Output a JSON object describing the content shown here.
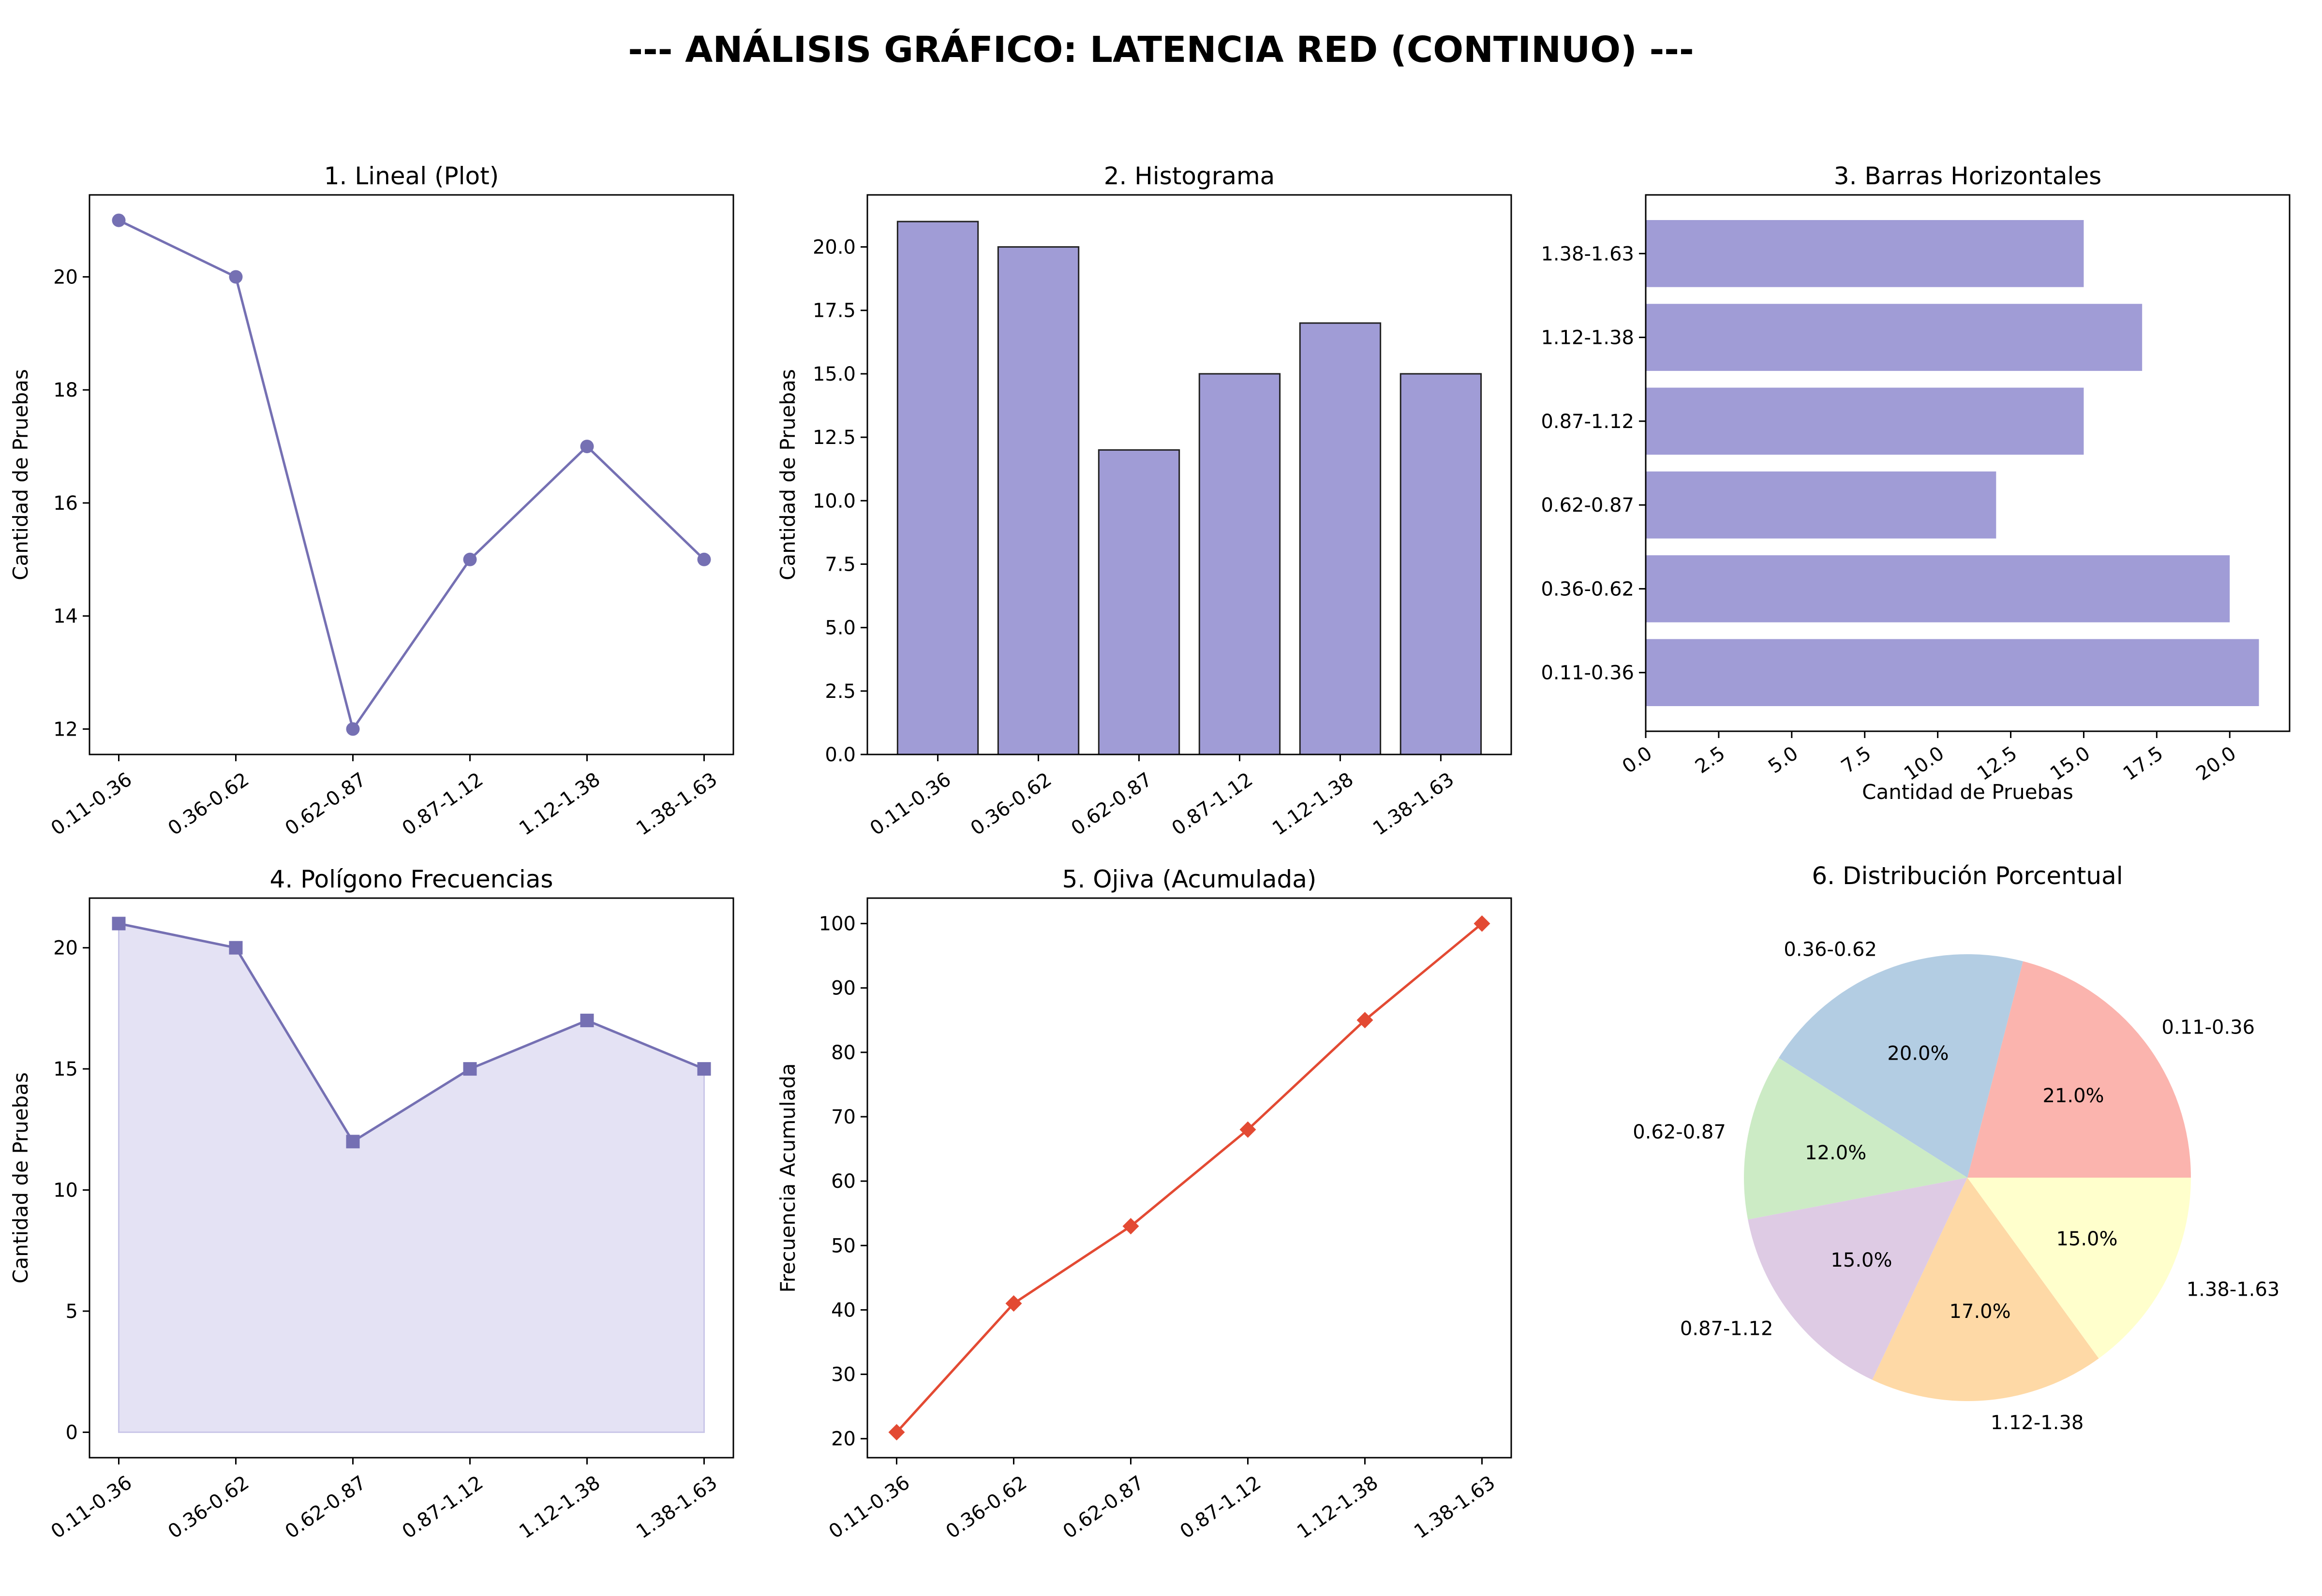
{
  "suptitle": "--- ANÁLISIS GRÁFICO: LATENCIA RED (CONTINUO) ---",
  "colors": {
    "purple_line": "#7570b3",
    "purple_fill": "#a09cd6",
    "purple_area": "#e4e2f4",
    "red": "#e34a33",
    "pie": [
      "#fbb4ae",
      "#b3cde3",
      "#ccebc5",
      "#decbe4",
      "#fed9a6",
      "#ffffcc"
    ]
  },
  "chart_data": [
    {
      "type": "line",
      "title": "1. Lineal (Plot)",
      "xlabel": "",
      "ylabel": "Cantidad de Pruebas",
      "categories": [
        "0.11-0.36",
        "0.36-0.62",
        "0.62-0.87",
        "0.87-1.12",
        "1.12-1.38",
        "1.38-1.63"
      ],
      "values": [
        21,
        20,
        12,
        15,
        17,
        15
      ],
      "ylim": [
        11.55,
        21.45
      ],
      "yticks": [
        "12",
        "14",
        "16",
        "18",
        "20"
      ],
      "ytick_values": [
        12,
        14,
        16,
        18,
        20
      ],
      "marker": "circle"
    },
    {
      "type": "bar",
      "title": "2. Histograma",
      "xlabel": "",
      "ylabel": "Cantidad de Pruebas",
      "categories": [
        "0.11-0.36",
        "0.36-0.62",
        "0.62-0.87",
        "0.87-1.12",
        "1.12-1.38",
        "1.38-1.63"
      ],
      "values": [
        21,
        20,
        12,
        15,
        17,
        15
      ],
      "ylim": [
        0,
        22.05
      ],
      "yticks": [
        "0.0",
        "2.5",
        "5.0",
        "7.5",
        "10.0",
        "12.5",
        "15.0",
        "17.5",
        "20.0"
      ],
      "ytick_values": [
        0,
        2.5,
        5,
        7.5,
        10,
        12.5,
        15,
        17.5,
        20
      ]
    },
    {
      "type": "barh",
      "title": "3. Barras Horizontales",
      "xlabel": "Cantidad de Pruebas",
      "ylabel": "",
      "categories": [
        "0.11-0.36",
        "0.36-0.62",
        "0.62-0.87",
        "0.87-1.12",
        "1.12-1.38",
        "1.38-1.63"
      ],
      "values": [
        21,
        20,
        12,
        15,
        17,
        15
      ],
      "xlim": [
        0,
        22.05
      ],
      "xticks": [
        "0.0",
        "2.5",
        "5.0",
        "7.5",
        "10.0",
        "12.5",
        "15.0",
        "17.5",
        "20.0"
      ],
      "xtick_values": [
        0,
        2.5,
        5,
        7.5,
        10,
        12.5,
        15,
        17.5,
        20
      ]
    },
    {
      "type": "area",
      "title": "4. Polígono Frecuencias",
      "xlabel": "",
      "ylabel": "Cantidad de Pruebas",
      "categories": [
        "0.11-0.36",
        "0.36-0.62",
        "0.62-0.87",
        "0.87-1.12",
        "1.12-1.38",
        "1.38-1.63"
      ],
      "values": [
        21,
        20,
        12,
        15,
        17,
        15
      ],
      "ylim": [
        -1.05,
        22.05
      ],
      "yticks": [
        "0",
        "5",
        "10",
        "15",
        "20"
      ],
      "ytick_values": [
        0,
        5,
        10,
        15,
        20
      ],
      "marker": "square"
    },
    {
      "type": "line",
      "title": "5. Ojiva (Acumulada)",
      "xlabel": "",
      "ylabel": "Frecuencia Acumulada",
      "categories": [
        "0.11-0.36",
        "0.36-0.62",
        "0.62-0.87",
        "0.87-1.12",
        "1.12-1.38",
        "1.38-1.63"
      ],
      "values": [
        21,
        41,
        53,
        68,
        85,
        100
      ],
      "ylim": [
        17.05,
        103.95
      ],
      "yticks": [
        "20",
        "30",
        "40",
        "50",
        "60",
        "70",
        "80",
        "90",
        "100"
      ],
      "ytick_values": [
        20,
        30,
        40,
        50,
        60,
        70,
        80,
        90,
        100
      ],
      "marker": "diamond"
    },
    {
      "type": "pie",
      "title": "6. Distribución Porcentual",
      "categories": [
        "0.11-0.36",
        "0.36-0.62",
        "0.62-0.87",
        "0.87-1.12",
        "1.12-1.38",
        "1.38-1.63"
      ],
      "values": [
        21,
        20,
        12,
        15,
        17,
        15
      ],
      "percent_labels": [
        "21.0%",
        "20.0%",
        "12.0%",
        "15.0%",
        "17.0%",
        "15.0%"
      ]
    }
  ]
}
